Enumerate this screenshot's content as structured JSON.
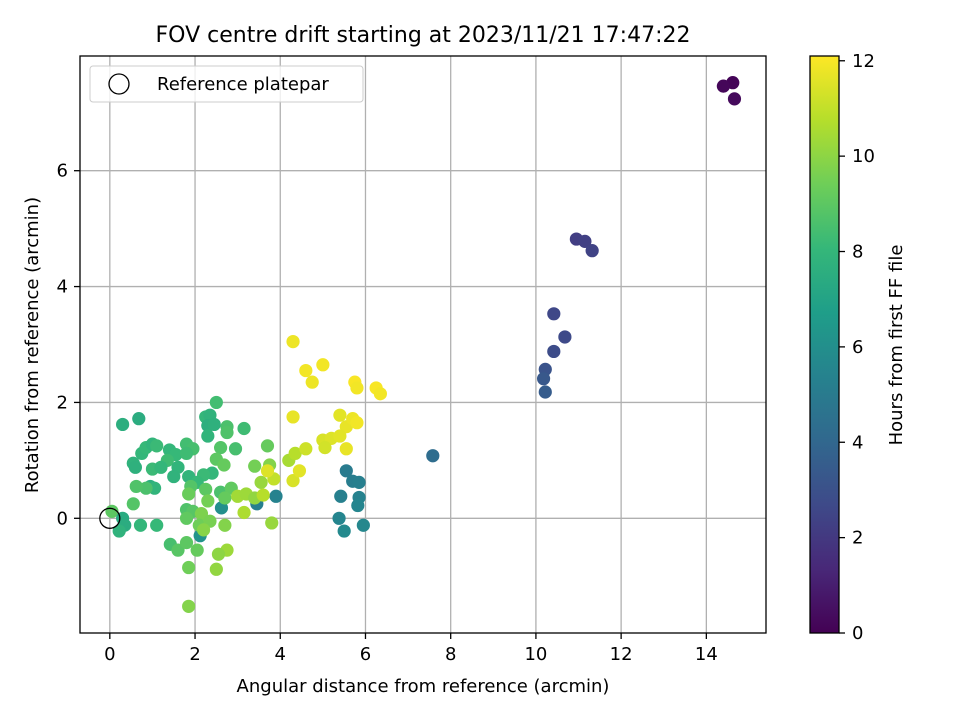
{
  "chart_data": {
    "type": "scatter",
    "title": "FOV centre drift starting at 2023/11/21 17:47:22",
    "xlabel": "Angular distance from reference (arcmin)",
    "ylabel": "Rotation from reference (arcmin)",
    "xlim": [
      -0.7,
      15.4
    ],
    "ylim": [
      -1.98,
      7.98
    ],
    "x_ticks": [
      0,
      2,
      4,
      6,
      8,
      10,
      12,
      14
    ],
    "y_ticks": [
      0,
      2,
      4,
      6
    ],
    "grid": true,
    "legend": {
      "placement": "top-left",
      "entries": [
        "Reference platepar"
      ]
    },
    "reference_point": {
      "x": 0,
      "y": 0
    },
    "colorbar": {
      "label": "Hours from first FF file",
      "colormap": "viridis",
      "range": [
        0,
        12.1
      ],
      "ticks": [
        0,
        2,
        4,
        6,
        8,
        10,
        12
      ]
    },
    "colorbar_colors": [
      "#440154",
      "#482878",
      "#3e4a89",
      "#31688e",
      "#26828e",
      "#1f9e89",
      "#35b779",
      "#6ece58",
      "#b5de2b",
      "#fde725"
    ],
    "series": [
      {
        "points": [
          {
            "x": 14.62,
            "y": 7.52,
            "c": 0.1
          },
          {
            "x": 14.4,
            "y": 7.46,
            "c": 0.2
          },
          {
            "x": 14.66,
            "y": 7.24,
            "c": 0.3
          },
          {
            "x": 10.95,
            "y": 4.82,
            "c": 2.2
          },
          {
            "x": 11.15,
            "y": 4.78,
            "c": 2.3
          },
          {
            "x": 11.32,
            "y": 4.62,
            "c": 2.4
          },
          {
            "x": 10.42,
            "y": 3.53,
            "c": 2.6
          },
          {
            "x": 10.68,
            "y": 3.13,
            "c": 2.7
          },
          {
            "x": 10.42,
            "y": 2.88,
            "c": 2.8
          },
          {
            "x": 10.22,
            "y": 2.57,
            "c": 3.1
          },
          {
            "x": 10.18,
            "y": 2.41,
            "c": 3.3
          },
          {
            "x": 10.22,
            "y": 2.18,
            "c": 3.5
          },
          {
            "x": 7.58,
            "y": 1.08,
            "c": 4.3
          },
          {
            "x": 5.55,
            "y": 0.82,
            "c": 5.0
          },
          {
            "x": 5.7,
            "y": 0.64,
            "c": 5.1
          },
          {
            "x": 5.85,
            "y": 0.62,
            "c": 5.2
          },
          {
            "x": 5.42,
            "y": 0.38,
            "c": 5.3
          },
          {
            "x": 5.85,
            "y": 0.36,
            "c": 5.4
          },
          {
            "x": 5.82,
            "y": 0.22,
            "c": 5.5
          },
          {
            "x": 5.38,
            "y": 0.0,
            "c": 5.5
          },
          {
            "x": 5.95,
            "y": -0.12,
            "c": 5.6
          },
          {
            "x": 5.5,
            "y": -0.22,
            "c": 5.7
          },
          {
            "x": 3.45,
            "y": 0.25,
            "c": 5.2
          },
          {
            "x": 3.9,
            "y": 0.38,
            "c": 5.4
          },
          {
            "x": 2.62,
            "y": 0.18,
            "c": 6.0
          },
          {
            "x": 2.12,
            "y": -0.3,
            "c": 6.2
          },
          {
            "x": 0.3,
            "y": 1.62,
            "c": 7.6
          },
          {
            "x": 0.68,
            "y": 1.72,
            "c": 7.5
          },
          {
            "x": 0.55,
            "y": 0.95,
            "c": 7.8
          },
          {
            "x": 0.6,
            "y": 0.88,
            "c": 7.7
          },
          {
            "x": 0.75,
            "y": 1.12,
            "c": 8.0
          },
          {
            "x": 0.85,
            "y": 1.22,
            "c": 8.1
          },
          {
            "x": 1.0,
            "y": 1.28,
            "c": 7.9
          },
          {
            "x": 1.1,
            "y": 1.25,
            "c": 8.2
          },
          {
            "x": 1.4,
            "y": 1.18,
            "c": 8.0
          },
          {
            "x": 1.55,
            "y": 1.1,
            "c": 8.1
          },
          {
            "x": 1.35,
            "y": 1.0,
            "c": 8.3
          },
          {
            "x": 1.8,
            "y": 1.28,
            "c": 8.4
          },
          {
            "x": 1.95,
            "y": 1.2,
            "c": 8.5
          },
          {
            "x": 1.8,
            "y": 1.12,
            "c": 8.3
          },
          {
            "x": 1.6,
            "y": 0.88,
            "c": 7.9
          },
          {
            "x": 1.0,
            "y": 0.85,
            "c": 8.2
          },
          {
            "x": 1.2,
            "y": 0.88,
            "c": 8.0
          },
          {
            "x": 1.5,
            "y": 0.72,
            "c": 7.8
          },
          {
            "x": 0.95,
            "y": 0.55,
            "c": 7.6
          },
          {
            "x": 1.05,
            "y": 0.52,
            "c": 7.9
          },
          {
            "x": 0.85,
            "y": 0.52,
            "c": 8.6
          },
          {
            "x": 0.62,
            "y": 0.55,
            "c": 8.7
          },
          {
            "x": 0.55,
            "y": 0.25,
            "c": 8.8
          },
          {
            "x": 0.05,
            "y": 0.12,
            "c": 9.0
          },
          {
            "x": 0.3,
            "y": 0.0,
            "c": 7.4
          },
          {
            "x": 0.35,
            "y": -0.12,
            "c": 7.5
          },
          {
            "x": 0.22,
            "y": -0.22,
            "c": 7.8
          },
          {
            "x": 0.72,
            "y": -0.12,
            "c": 8.0
          },
          {
            "x": 1.1,
            "y": -0.12,
            "c": 8.1
          },
          {
            "x": 1.42,
            "y": -0.45,
            "c": 8.5
          },
          {
            "x": 1.6,
            "y": -0.55,
            "c": 8.9
          },
          {
            "x": 1.8,
            "y": -0.42,
            "c": 9.0
          },
          {
            "x": 2.05,
            "y": -0.55,
            "c": 9.2
          },
          {
            "x": 1.85,
            "y": -0.85,
            "c": 9.4
          },
          {
            "x": 1.85,
            "y": -1.52,
            "c": 9.8
          },
          {
            "x": 2.25,
            "y": 1.75,
            "c": 8.0
          },
          {
            "x": 2.35,
            "y": 1.78,
            "c": 7.8
          },
          {
            "x": 2.5,
            "y": 2.0,
            "c": 8.4
          },
          {
            "x": 2.3,
            "y": 1.6,
            "c": 7.6
          },
          {
            "x": 2.45,
            "y": 1.62,
            "c": 7.7
          },
          {
            "x": 2.3,
            "y": 1.42,
            "c": 7.9
          },
          {
            "x": 2.75,
            "y": 1.58,
            "c": 8.6
          },
          {
            "x": 2.75,
            "y": 1.48,
            "c": 8.7
          },
          {
            "x": 3.15,
            "y": 1.55,
            "c": 8.3
          },
          {
            "x": 2.6,
            "y": 1.22,
            "c": 8.8
          },
          {
            "x": 2.95,
            "y": 1.2,
            "c": 8.5
          },
          {
            "x": 2.5,
            "y": 1.02,
            "c": 9.0
          },
          {
            "x": 2.68,
            "y": 0.92,
            "c": 9.2
          },
          {
            "x": 2.4,
            "y": 0.78,
            "c": 8.0
          },
          {
            "x": 2.2,
            "y": 0.75,
            "c": 8.2
          },
          {
            "x": 1.85,
            "y": 0.72,
            "c": 7.9
          },
          {
            "x": 2.05,
            "y": 0.62,
            "c": 8.1
          },
          {
            "x": 1.9,
            "y": 0.55,
            "c": 8.8
          },
          {
            "x": 2.25,
            "y": 0.5,
            "c": 9.0
          },
          {
            "x": 2.6,
            "y": 0.45,
            "c": 8.6
          },
          {
            "x": 2.85,
            "y": 0.52,
            "c": 9.1
          },
          {
            "x": 1.85,
            "y": 0.42,
            "c": 9.3
          },
          {
            "x": 2.3,
            "y": 0.3,
            "c": 9.5
          },
          {
            "x": 2.7,
            "y": 0.35,
            "c": 9.2
          },
          {
            "x": 1.8,
            "y": 0.15,
            "c": 8.7
          },
          {
            "x": 1.95,
            "y": 0.12,
            "c": 8.9
          },
          {
            "x": 2.15,
            "y": 0.08,
            "c": 9.7
          },
          {
            "x": 1.8,
            "y": 0.0,
            "c": 9.1
          },
          {
            "x": 2.1,
            "y": -0.12,
            "c": 9.4
          },
          {
            "x": 2.35,
            "y": -0.05,
            "c": 9.6
          },
          {
            "x": 2.7,
            "y": -0.12,
            "c": 9.8
          },
          {
            "x": 2.2,
            "y": -0.2,
            "c": 9.9
          },
          {
            "x": 2.75,
            "y": -0.55,
            "c": 10.3
          },
          {
            "x": 2.55,
            "y": -0.62,
            "c": 10.0
          },
          {
            "x": 2.5,
            "y": -0.88,
            "c": 10.1
          },
          {
            "x": 3.4,
            "y": 0.9,
            "c": 9.5
          },
          {
            "x": 3.7,
            "y": 1.25,
            "c": 9.2
          },
          {
            "x": 3.75,
            "y": 0.92,
            "c": 9.8
          },
          {
            "x": 3.55,
            "y": 0.62,
            "c": 10.2
          },
          {
            "x": 3.0,
            "y": 0.38,
            "c": 10.4
          },
          {
            "x": 3.2,
            "y": 0.42,
            "c": 10.3
          },
          {
            "x": 3.4,
            "y": 0.35,
            "c": 10.1
          },
          {
            "x": 3.6,
            "y": 0.4,
            "c": 10.8
          },
          {
            "x": 3.85,
            "y": 0.68,
            "c": 11.0
          },
          {
            "x": 3.15,
            "y": 0.1,
            "c": 10.6
          },
          {
            "x": 3.8,
            "y": -0.08,
            "c": 10.2
          },
          {
            "x": 4.2,
            "y": 1.0,
            "c": 10.5
          },
          {
            "x": 4.35,
            "y": 1.12,
            "c": 10.8
          },
          {
            "x": 4.6,
            "y": 1.2,
            "c": 11.2
          },
          {
            "x": 4.3,
            "y": 0.65,
            "c": 11.4
          },
          {
            "x": 4.45,
            "y": 0.82,
            "c": 11.6
          },
          {
            "x": 3.7,
            "y": 0.82,
            "c": 11.5
          },
          {
            "x": 4.3,
            "y": 3.05,
            "c": 11.8
          },
          {
            "x": 4.3,
            "y": 1.75,
            "c": 11.7
          },
          {
            "x": 4.6,
            "y": 2.55,
            "c": 11.9
          },
          {
            "x": 4.75,
            "y": 2.35,
            "c": 11.8
          },
          {
            "x": 5.0,
            "y": 2.65,
            "c": 11.9
          },
          {
            "x": 5.75,
            "y": 2.35,
            "c": 12.0
          },
          {
            "x": 5.8,
            "y": 2.25,
            "c": 11.9
          },
          {
            "x": 6.25,
            "y": 2.25,
            "c": 12.0
          },
          {
            "x": 6.35,
            "y": 2.15,
            "c": 11.9
          },
          {
            "x": 5.4,
            "y": 1.78,
            "c": 11.6
          },
          {
            "x": 5.55,
            "y": 1.58,
            "c": 11.7
          },
          {
            "x": 5.7,
            "y": 1.72,
            "c": 11.8
          },
          {
            "x": 5.8,
            "y": 1.65,
            "c": 11.9
          },
          {
            "x": 5.0,
            "y": 1.35,
            "c": 11.4
          },
          {
            "x": 5.2,
            "y": 1.38,
            "c": 11.5
          },
          {
            "x": 5.4,
            "y": 1.42,
            "c": 11.6
          },
          {
            "x": 5.05,
            "y": 1.22,
            "c": 11.3
          },
          {
            "x": 5.55,
            "y": 1.2,
            "c": 11.7
          }
        ]
      }
    ]
  }
}
